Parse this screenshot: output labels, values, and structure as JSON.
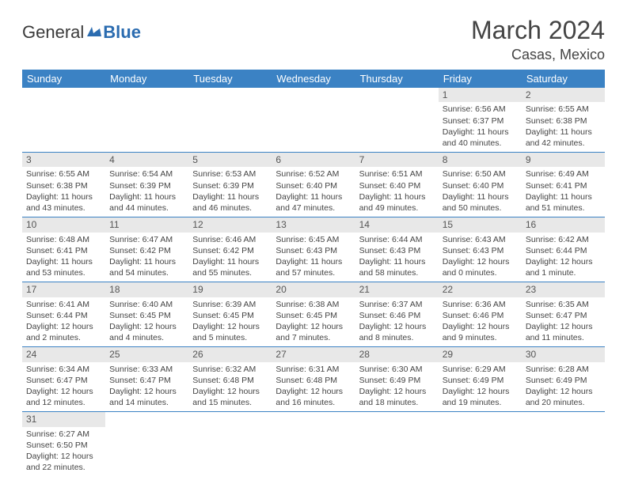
{
  "brand": {
    "part1": "General",
    "part2": "Blue"
  },
  "title": "March 2024",
  "location": "Casas, Mexico",
  "colors": {
    "header_bg": "#3b82c4",
    "header_text": "#ffffff",
    "daynum_bg": "#e8e8e8",
    "border": "#3b82c4",
    "text": "#444444"
  },
  "weekdays": [
    "Sunday",
    "Monday",
    "Tuesday",
    "Wednesday",
    "Thursday",
    "Friday",
    "Saturday"
  ],
  "weeks": [
    [
      {
        "day": "",
        "lines": []
      },
      {
        "day": "",
        "lines": []
      },
      {
        "day": "",
        "lines": []
      },
      {
        "day": "",
        "lines": []
      },
      {
        "day": "",
        "lines": []
      },
      {
        "day": "1",
        "lines": [
          "Sunrise: 6:56 AM",
          "Sunset: 6:37 PM",
          "Daylight: 11 hours and 40 minutes."
        ]
      },
      {
        "day": "2",
        "lines": [
          "Sunrise: 6:55 AM",
          "Sunset: 6:38 PM",
          "Daylight: 11 hours and 42 minutes."
        ]
      }
    ],
    [
      {
        "day": "3",
        "lines": [
          "Sunrise: 6:55 AM",
          "Sunset: 6:38 PM",
          "Daylight: 11 hours and 43 minutes."
        ]
      },
      {
        "day": "4",
        "lines": [
          "Sunrise: 6:54 AM",
          "Sunset: 6:39 PM",
          "Daylight: 11 hours and 44 minutes."
        ]
      },
      {
        "day": "5",
        "lines": [
          "Sunrise: 6:53 AM",
          "Sunset: 6:39 PM",
          "Daylight: 11 hours and 46 minutes."
        ]
      },
      {
        "day": "6",
        "lines": [
          "Sunrise: 6:52 AM",
          "Sunset: 6:40 PM",
          "Daylight: 11 hours and 47 minutes."
        ]
      },
      {
        "day": "7",
        "lines": [
          "Sunrise: 6:51 AM",
          "Sunset: 6:40 PM",
          "Daylight: 11 hours and 49 minutes."
        ]
      },
      {
        "day": "8",
        "lines": [
          "Sunrise: 6:50 AM",
          "Sunset: 6:40 PM",
          "Daylight: 11 hours and 50 minutes."
        ]
      },
      {
        "day": "9",
        "lines": [
          "Sunrise: 6:49 AM",
          "Sunset: 6:41 PM",
          "Daylight: 11 hours and 51 minutes."
        ]
      }
    ],
    [
      {
        "day": "10",
        "lines": [
          "Sunrise: 6:48 AM",
          "Sunset: 6:41 PM",
          "Daylight: 11 hours and 53 minutes."
        ]
      },
      {
        "day": "11",
        "lines": [
          "Sunrise: 6:47 AM",
          "Sunset: 6:42 PM",
          "Daylight: 11 hours and 54 minutes."
        ]
      },
      {
        "day": "12",
        "lines": [
          "Sunrise: 6:46 AM",
          "Sunset: 6:42 PM",
          "Daylight: 11 hours and 55 minutes."
        ]
      },
      {
        "day": "13",
        "lines": [
          "Sunrise: 6:45 AM",
          "Sunset: 6:43 PM",
          "Daylight: 11 hours and 57 minutes."
        ]
      },
      {
        "day": "14",
        "lines": [
          "Sunrise: 6:44 AM",
          "Sunset: 6:43 PM",
          "Daylight: 11 hours and 58 minutes."
        ]
      },
      {
        "day": "15",
        "lines": [
          "Sunrise: 6:43 AM",
          "Sunset: 6:43 PM",
          "Daylight: 12 hours and 0 minutes."
        ]
      },
      {
        "day": "16",
        "lines": [
          "Sunrise: 6:42 AM",
          "Sunset: 6:44 PM",
          "Daylight: 12 hours and 1 minute."
        ]
      }
    ],
    [
      {
        "day": "17",
        "lines": [
          "Sunrise: 6:41 AM",
          "Sunset: 6:44 PM",
          "Daylight: 12 hours and 2 minutes."
        ]
      },
      {
        "day": "18",
        "lines": [
          "Sunrise: 6:40 AM",
          "Sunset: 6:45 PM",
          "Daylight: 12 hours and 4 minutes."
        ]
      },
      {
        "day": "19",
        "lines": [
          "Sunrise: 6:39 AM",
          "Sunset: 6:45 PM",
          "Daylight: 12 hours and 5 minutes."
        ]
      },
      {
        "day": "20",
        "lines": [
          "Sunrise: 6:38 AM",
          "Sunset: 6:45 PM",
          "Daylight: 12 hours and 7 minutes."
        ]
      },
      {
        "day": "21",
        "lines": [
          "Sunrise: 6:37 AM",
          "Sunset: 6:46 PM",
          "Daylight: 12 hours and 8 minutes."
        ]
      },
      {
        "day": "22",
        "lines": [
          "Sunrise: 6:36 AM",
          "Sunset: 6:46 PM",
          "Daylight: 12 hours and 9 minutes."
        ]
      },
      {
        "day": "23",
        "lines": [
          "Sunrise: 6:35 AM",
          "Sunset: 6:47 PM",
          "Daylight: 12 hours and 11 minutes."
        ]
      }
    ],
    [
      {
        "day": "24",
        "lines": [
          "Sunrise: 6:34 AM",
          "Sunset: 6:47 PM",
          "Daylight: 12 hours and 12 minutes."
        ]
      },
      {
        "day": "25",
        "lines": [
          "Sunrise: 6:33 AM",
          "Sunset: 6:47 PM",
          "Daylight: 12 hours and 14 minutes."
        ]
      },
      {
        "day": "26",
        "lines": [
          "Sunrise: 6:32 AM",
          "Sunset: 6:48 PM",
          "Daylight: 12 hours and 15 minutes."
        ]
      },
      {
        "day": "27",
        "lines": [
          "Sunrise: 6:31 AM",
          "Sunset: 6:48 PM",
          "Daylight: 12 hours and 16 minutes."
        ]
      },
      {
        "day": "28",
        "lines": [
          "Sunrise: 6:30 AM",
          "Sunset: 6:49 PM",
          "Daylight: 12 hours and 18 minutes."
        ]
      },
      {
        "day": "29",
        "lines": [
          "Sunrise: 6:29 AM",
          "Sunset: 6:49 PM",
          "Daylight: 12 hours and 19 minutes."
        ]
      },
      {
        "day": "30",
        "lines": [
          "Sunrise: 6:28 AM",
          "Sunset: 6:49 PM",
          "Daylight: 12 hours and 20 minutes."
        ]
      }
    ],
    [
      {
        "day": "31",
        "lines": [
          "Sunrise: 6:27 AM",
          "Sunset: 6:50 PM",
          "Daylight: 12 hours and 22 minutes."
        ]
      },
      {
        "day": "",
        "lines": []
      },
      {
        "day": "",
        "lines": []
      },
      {
        "day": "",
        "lines": []
      },
      {
        "day": "",
        "lines": []
      },
      {
        "day": "",
        "lines": []
      },
      {
        "day": "",
        "lines": []
      }
    ]
  ]
}
